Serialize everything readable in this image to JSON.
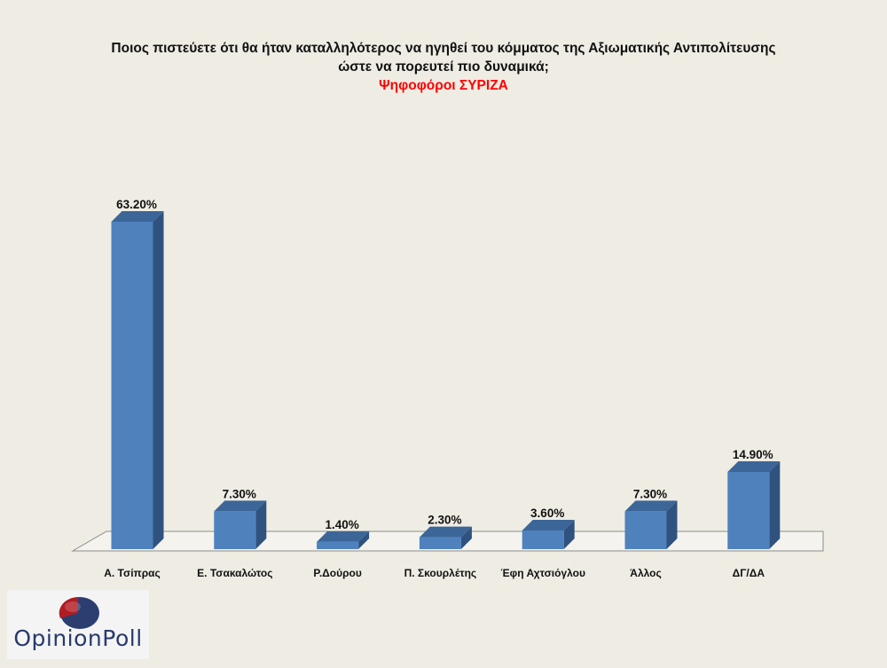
{
  "chart_data": {
    "type": "bar",
    "title_line1": "Ποιος πιστεύετε ότι θα ήταν καταλληλότερος  να ηγηθεί του κόμματος της Αξιωματικής Αντιπολίτευσης",
    "title_line2": "ώστε να πορευτεί πιο δυναμικά;",
    "subtitle": "Ψηφοφόροι ΣΥΡΙΖΑ",
    "categories": [
      "Α. Τσίπρας",
      "Ε. Τσακαλώτος",
      "Ρ.Δούρου",
      "Π. Σκουρλέτης",
      "Έφη Αχτσιόγλου",
      "Άλλος",
      "ΔΓ/ΔΑ"
    ],
    "values": [
      63.2,
      7.3,
      1.4,
      2.3,
      3.6,
      7.3,
      14.9
    ],
    "labels": [
      "63.20%",
      "7.30%",
      "1.40%",
      "2.30%",
      "3.60%",
      "7.30%",
      "14.90%"
    ],
    "ylim": [
      0,
      70
    ],
    "grid": false,
    "legend": "none",
    "colors": {
      "bar_front": "#4f81bd",
      "bar_side": "#2f527f",
      "bar_top": "#3c6698",
      "floor": "#f4f3ee",
      "floor_stroke": "#8c8c8c"
    }
  },
  "logo": {
    "text": "OpinionPoll",
    "colors": {
      "red": "#b01c22",
      "blue": "#2c3e70"
    }
  }
}
